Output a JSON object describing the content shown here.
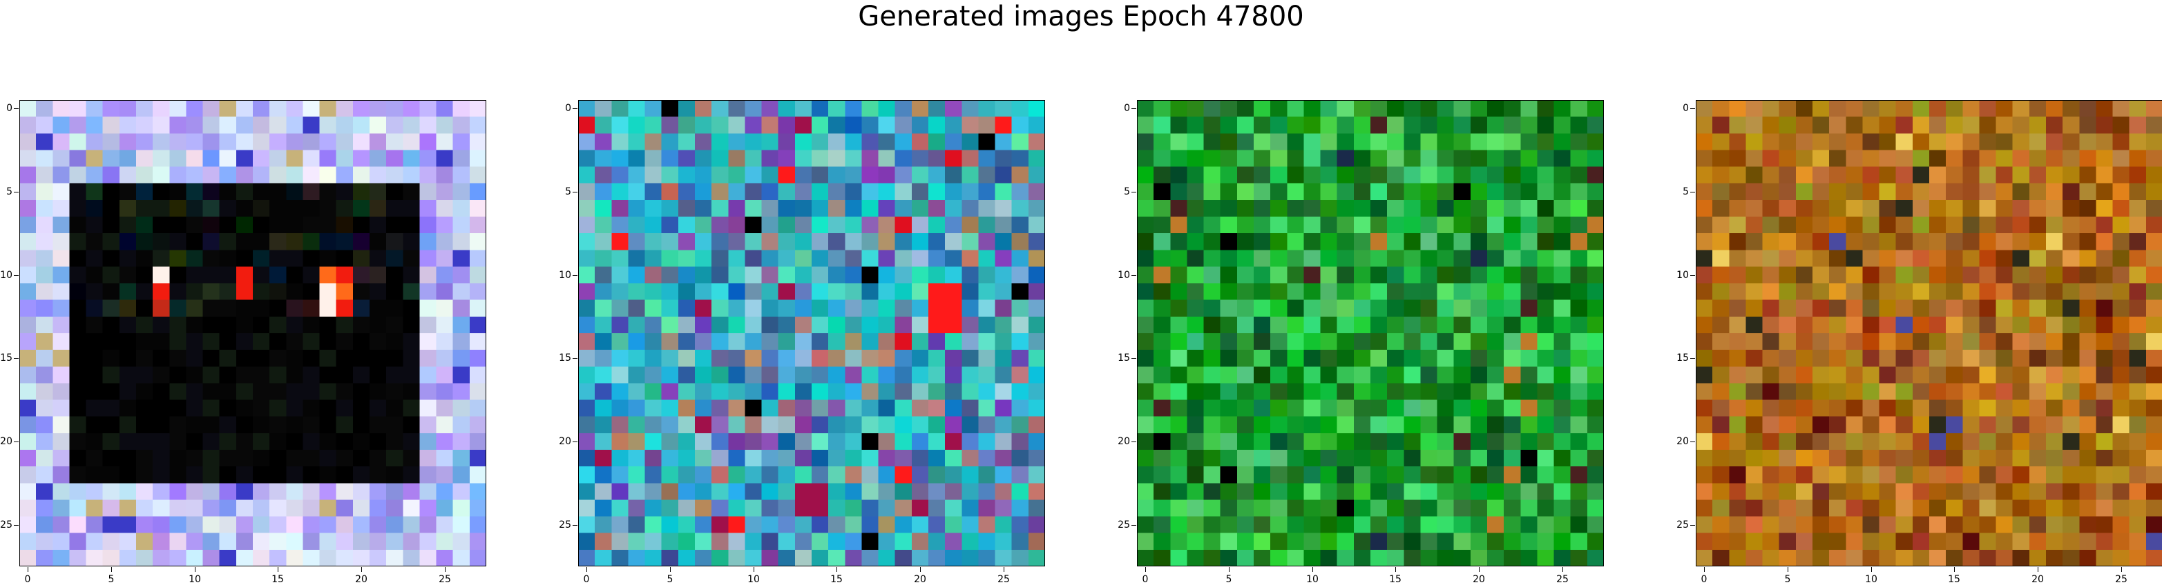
{
  "figure": {
    "title": "Generated images Epoch 47800"
  },
  "axes": {
    "x_tick_labels": [
      "0",
      "5",
      "10",
      "15",
      "20",
      "25"
    ],
    "y_tick_labels": [
      "0",
      "5",
      "10",
      "15",
      "20",
      "25"
    ],
    "tick_values": [
      0,
      5,
      10,
      15,
      20,
      25
    ],
    "grid_size": 28,
    "extent": [
      -0.5,
      27.5
    ]
  },
  "images": [
    {
      "name": "image-1",
      "border_colors": [
        "#c9d6f4",
        "#d9e3fb",
        "#b7c3f2",
        "#a99cf0",
        "#7aa8f4",
        "#e7ecfb",
        "#9b86f0",
        "#c6c1f5"
      ],
      "inner_colors": [
        "#000000",
        "#050505",
        "#0a0a12",
        "#000000",
        "#080808",
        "#101a10"
      ],
      "accent_colors": [
        "#ff6a1a",
        "#f21c0f",
        "#c52a18",
        "#fff1ea",
        "#3a3bc7",
        "#c7b27a"
      ]
    },
    {
      "name": "image-2",
      "palette": [
        "#3fc6d8",
        "#2a9fcf",
        "#5f8fbf",
        "#1fd0c8",
        "#7a4fa7",
        "#b07c6a",
        "#2bb7c9",
        "#4fd6b5",
        "#1d73b0",
        "#8fbfd0",
        "#3f5fa0",
        "#26a7a0"
      ],
      "accent_colors": [
        "#ff1a1a",
        "#e00f1f",
        "#000000",
        "#a0104a"
      ]
    },
    {
      "name": "image-3",
      "palette": [
        "#0f9a1f",
        "#1eae35",
        "#0b7d17",
        "#2fbf4a",
        "#157a24",
        "#3fcf5a",
        "#0a5f12",
        "#1f8f3a",
        "#4ad06a",
        "#0d6a1f"
      ],
      "accent_colors": [
        "#000000",
        "#c07a2a",
        "#4a2020",
        "#1a2a4a"
      ]
    },
    {
      "name": "image-4",
      "palette": [
        "#b5761c",
        "#a35a14",
        "#c98a24",
        "#8f4a10",
        "#b86a1a",
        "#d09a30",
        "#9f6a18",
        "#7a3a0c",
        "#c47f2a",
        "#a8781e"
      ],
      "accent_colors": [
        "#2a2a1a",
        "#4a4aa0",
        "#f0d060",
        "#5a0a0a",
        "#8fa020"
      ]
    }
  ]
}
